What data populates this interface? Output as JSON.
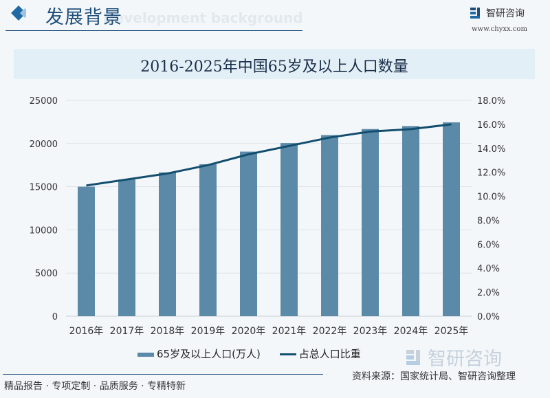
{
  "header": {
    "title": "发展背景",
    "subtitle": "Development background",
    "logo_text": "智研咨询",
    "url": "www.chyxx.com"
  },
  "watermark": "智研咨询",
  "colors": {
    "bar": "#5b8aa8",
    "line": "#134e6f",
    "accent": "#1f6aa5"
  },
  "chart_data": {
    "type": "bar+line",
    "title": "2016-2025年中国65岁及以上人口数量",
    "categories": [
      "2016年",
      "2017年",
      "2018年",
      "2019年",
      "2020年",
      "2021年",
      "2022年",
      "2023年",
      "2024年",
      "2025年"
    ],
    "series": [
      {
        "name": "65岁及以上人口(万人)",
        "type": "bar",
        "axis": "left",
        "values": [
          15003,
          15831,
          16658,
          17603,
          19064,
          20056,
          20978,
          21676,
          22023,
          22450
        ]
      },
      {
        "name": "占总人口比重",
        "type": "line",
        "axis": "right",
        "values": [
          10.9,
          11.4,
          11.9,
          12.6,
          13.5,
          14.2,
          14.9,
          15.4,
          15.6,
          16.0
        ]
      }
    ],
    "y_left": {
      "range": [
        0,
        25000
      ],
      "ticks": [
        "0",
        "5000",
        "10000",
        "15000",
        "20000",
        "25000"
      ]
    },
    "y_right": {
      "range": [
        0,
        18
      ],
      "ticks": [
        "0.0%",
        "2.0%",
        "4.0%",
        "6.0%",
        "8.0%",
        "10.0%",
        "12.0%",
        "14.0%",
        "16.0%",
        "18.0%"
      ]
    },
    "grid": true,
    "legend": "bottom"
  },
  "footer": {
    "source": "资料来源：国家统计局、智研咨询整理",
    "slogan": "精品报告 · 专项定制 · 品质服务 · 专精特新"
  }
}
